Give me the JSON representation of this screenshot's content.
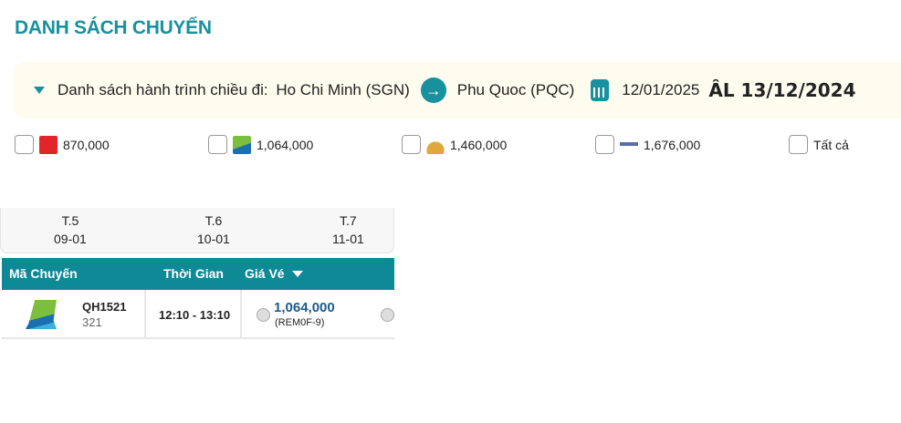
{
  "page_title": "DANH SÁCH CHUYẾN",
  "route": {
    "label": "Danh sách hành trình chiều đi:",
    "from": "Ho Chi Minh (SGN)",
    "to": "Phu Quoc (PQC)",
    "date": "12/01/2025",
    "lunar_date": "ÂL 13/12/2024"
  },
  "filters": [
    {
      "airline_icon": "vietjet-logo",
      "price": "870,000"
    },
    {
      "airline_icon": "bamboo-logo",
      "price": "1,064,000"
    },
    {
      "airline_icon": "vietnam-airlines-logo",
      "price": "1,460,000"
    },
    {
      "airline_icon": "pacific-airlines-logo",
      "price": "1,676,000"
    },
    {
      "label": "Tất cả"
    }
  ],
  "date_tabs": [
    {
      "day": "T.5",
      "date": "09-01"
    },
    {
      "day": "T.6",
      "date": "10-01"
    },
    {
      "day": "T.7",
      "date": "11-01"
    }
  ],
  "table": {
    "headers": {
      "code": "Mã Chuyến",
      "time": "Thời Gian",
      "price": "Giá Vé"
    },
    "rows": [
      {
        "airline_icon": "bamboo-logo",
        "flight": "QH1521",
        "aircraft": "321",
        "time": "12:10 - 13:10",
        "price": "1,064,000",
        "fare_class": "(REM0F-9)"
      }
    ]
  },
  "colors": {
    "accent": "#17919e",
    "header": "#0e8a96",
    "price": "#1c5a8c"
  }
}
